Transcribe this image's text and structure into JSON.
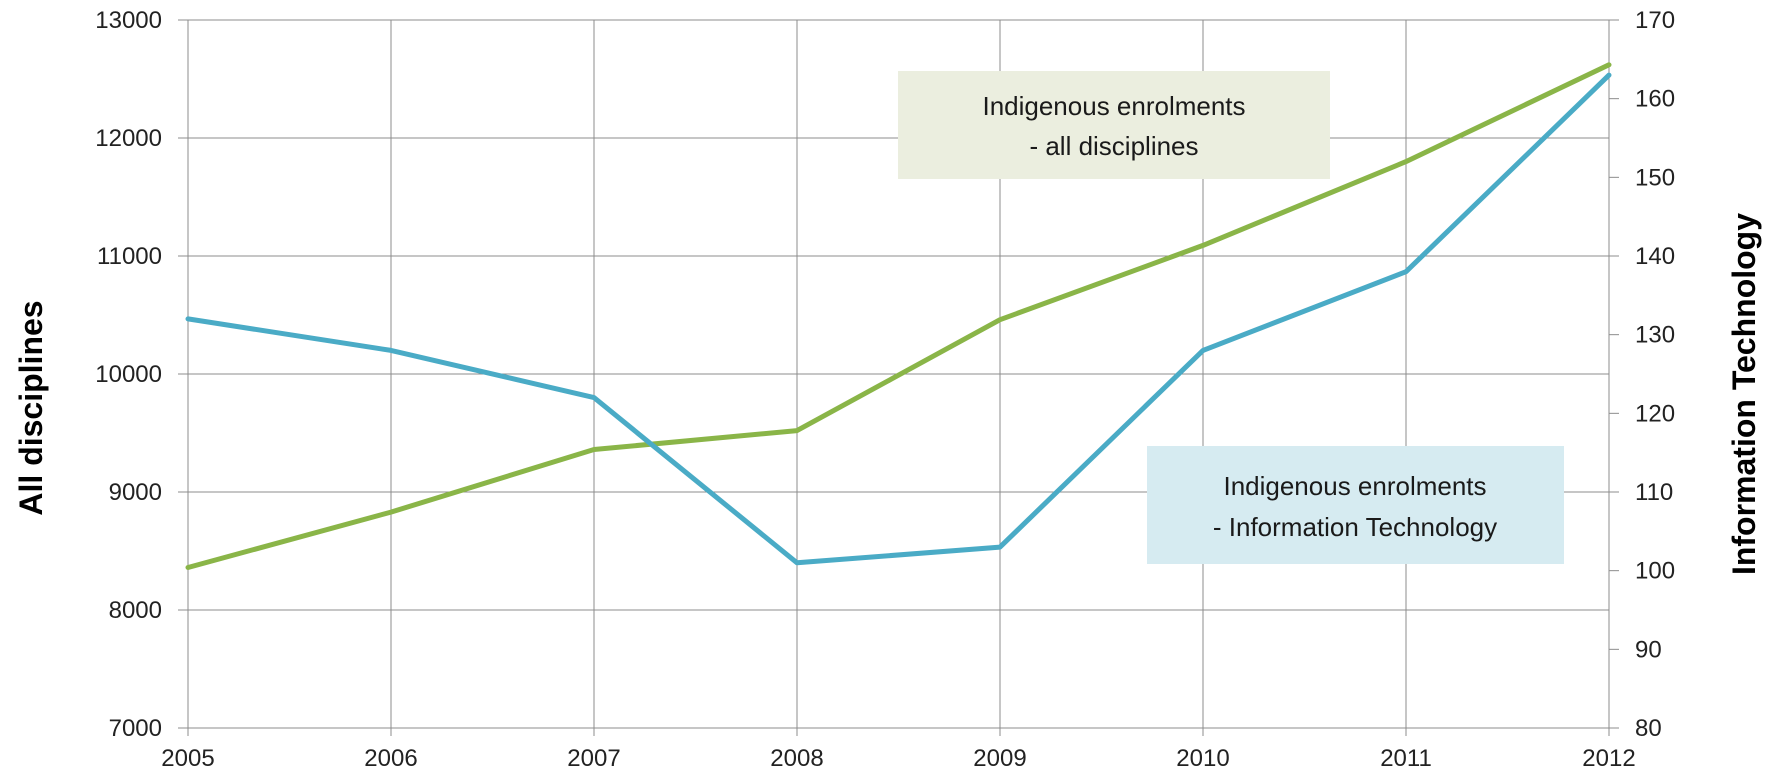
{
  "chart_data": {
    "type": "line",
    "x": [
      2005,
      2006,
      2007,
      2008,
      2009,
      2010,
      2011,
      2012
    ],
    "xlim": [
      2005,
      2012
    ],
    "ylabel_left": "All disciplines",
    "ylabel_right": "Information Technology",
    "ylim_left": [
      7000,
      13000
    ],
    "ylim_right": [
      80,
      170
    ],
    "yticks_left": [
      7000,
      8000,
      9000,
      10000,
      11000,
      12000,
      13000
    ],
    "yticks_right": [
      80,
      90,
      100,
      110,
      120,
      130,
      140,
      150,
      160,
      170
    ],
    "grid": true,
    "series": [
      {
        "axis": "left",
        "color": "#8ab548",
        "values": [
          8360,
          8830,
          9360,
          9520,
          10460,
          11090,
          11800,
          12620
        ]
      },
      {
        "axis": "right",
        "color": "#4aabc6",
        "values": [
          132,
          128,
          122,
          101,
          103,
          128,
          138,
          163
        ]
      }
    ],
    "annotations": [
      {
        "lines": [
          "Indigenous enrolments",
          "- all disciplines"
        ],
        "background": "#ebeedf"
      },
      {
        "lines": [
          "Indigenous enrolments",
          "- Information Technology"
        ],
        "background": "#d6ebf1"
      }
    ]
  }
}
